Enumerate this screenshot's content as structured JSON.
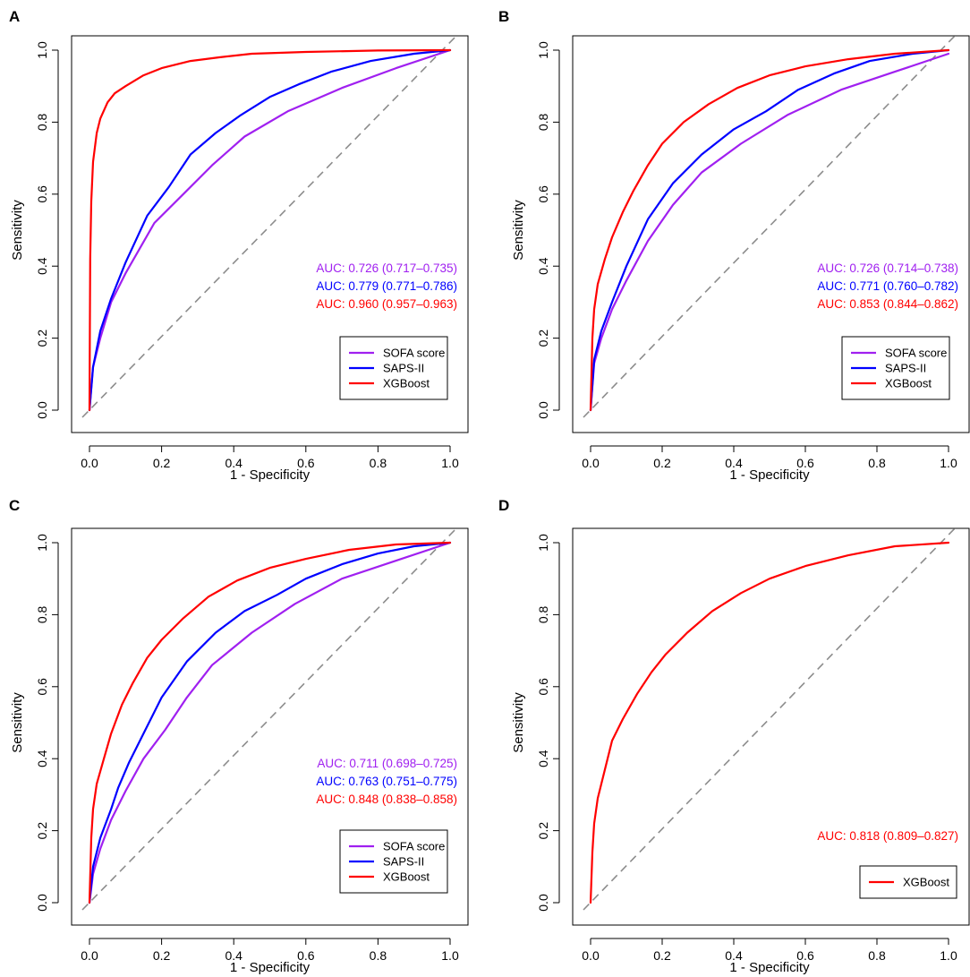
{
  "figure": {
    "panels": [
      "A",
      "B",
      "C",
      "D"
    ]
  },
  "chart_data": [
    {
      "panel": "A",
      "type": "line",
      "xlabel": "1 - Specificity",
      "ylabel": "Sensitivity",
      "xlim": [
        0,
        1
      ],
      "ylim": [
        0,
        1
      ],
      "xticks": [
        "0.0",
        "0.2",
        "0.4",
        "0.6",
        "0.8",
        "1.0"
      ],
      "yticks": [
        "0.0",
        "0.2",
        "0.4",
        "0.6",
        "0.8",
        "1.0"
      ],
      "legend_position": "bottom-right",
      "series": [
        {
          "name": "SOFA score",
          "color": "#a020f0",
          "auc_label": "AUC: 0.726 (0.717–0.735)",
          "x": [
            0,
            0.01,
            0.03,
            0.06,
            0.1,
            0.18,
            0.26,
            0.34,
            0.43,
            0.55,
            0.7,
            0.85,
            1.0
          ],
          "y": [
            0,
            0.12,
            0.2,
            0.3,
            0.38,
            0.52,
            0.6,
            0.68,
            0.76,
            0.83,
            0.895,
            0.95,
            1.0
          ]
        },
        {
          "name": "SAPS-II",
          "color": "#0000ff",
          "auc_label": "AUC: 0.779 (0.771–0.786)",
          "x": [
            0,
            0.01,
            0.03,
            0.06,
            0.1,
            0.16,
            0.22,
            0.28,
            0.35,
            0.42,
            0.5,
            0.58,
            0.67,
            0.78,
            0.9,
            1.0
          ],
          "y": [
            0,
            0.12,
            0.22,
            0.31,
            0.41,
            0.54,
            0.62,
            0.71,
            0.77,
            0.82,
            0.87,
            0.905,
            0.94,
            0.97,
            0.99,
            1.0
          ]
        },
        {
          "name": "XGBoost",
          "color": "#ff0000",
          "auc_label": "AUC: 0.960 (0.957–0.963)",
          "x": [
            0,
            0.002,
            0.005,
            0.01,
            0.02,
            0.03,
            0.05,
            0.07,
            0.1,
            0.15,
            0.2,
            0.28,
            0.36,
            0.45,
            0.6,
            0.8,
            1.0
          ],
          "y": [
            0,
            0.42,
            0.58,
            0.69,
            0.77,
            0.81,
            0.855,
            0.88,
            0.9,
            0.93,
            0.95,
            0.97,
            0.98,
            0.99,
            0.995,
            0.999,
            1.0
          ]
        }
      ]
    },
    {
      "panel": "B",
      "type": "line",
      "xlabel": "1 - Specificity",
      "ylabel": "Sensitivity",
      "xlim": [
        0,
        1
      ],
      "ylim": [
        0,
        1
      ],
      "xticks": [
        "0.0",
        "0.2",
        "0.4",
        "0.6",
        "0.8",
        "1.0"
      ],
      "yticks": [
        "0.0",
        "0.2",
        "0.4",
        "0.6",
        "0.8",
        "1.0"
      ],
      "legend_position": "bottom-right",
      "series": [
        {
          "name": "SOFA score",
          "color": "#a020f0",
          "auc_label": "AUC: 0.726 (0.714–0.738)",
          "x": [
            0,
            0.01,
            0.03,
            0.06,
            0.1,
            0.16,
            0.23,
            0.31,
            0.42,
            0.55,
            0.7,
            0.85,
            1.0
          ],
          "y": [
            0,
            0.13,
            0.2,
            0.28,
            0.36,
            0.47,
            0.57,
            0.66,
            0.74,
            0.82,
            0.89,
            0.94,
            0.99
          ]
        },
        {
          "name": "SAPS-II",
          "color": "#0000ff",
          "auc_label": "AUC: 0.771 (0.760–0.782)",
          "x": [
            0,
            0.01,
            0.03,
            0.06,
            0.1,
            0.16,
            0.23,
            0.31,
            0.4,
            0.49,
            0.58,
            0.68,
            0.78,
            0.9,
            1.0
          ],
          "y": [
            0,
            0.14,
            0.22,
            0.3,
            0.4,
            0.53,
            0.63,
            0.71,
            0.78,
            0.83,
            0.89,
            0.935,
            0.97,
            0.99,
            1.0
          ]
        },
        {
          "name": "XGBoost",
          "color": "#ff0000",
          "auc_label": "AUC: 0.853 (0.844–0.862)",
          "x": [
            0,
            0.005,
            0.01,
            0.02,
            0.04,
            0.06,
            0.09,
            0.12,
            0.16,
            0.2,
            0.26,
            0.33,
            0.41,
            0.5,
            0.6,
            0.72,
            0.85,
            1.0
          ],
          "y": [
            0,
            0.2,
            0.28,
            0.35,
            0.42,
            0.48,
            0.55,
            0.61,
            0.68,
            0.74,
            0.8,
            0.85,
            0.895,
            0.93,
            0.955,
            0.975,
            0.99,
            1.0
          ]
        }
      ]
    },
    {
      "panel": "C",
      "type": "line",
      "xlabel": "1 - Specificity",
      "ylabel": "Sensitivity",
      "xlim": [
        0,
        1
      ],
      "ylim": [
        0,
        1
      ],
      "xticks": [
        "0.0",
        "0.2",
        "0.4",
        "0.6",
        "0.8",
        "1.0"
      ],
      "yticks": [
        "0.0",
        "0.2",
        "0.4",
        "0.6",
        "0.8",
        "1.0"
      ],
      "legend_position": "bottom-right",
      "series": [
        {
          "name": "SOFA score",
          "color": "#a020f0",
          "auc_label": "AUC: 0.711 (0.698–0.725)",
          "x": [
            0,
            0.01,
            0.03,
            0.06,
            0.1,
            0.15,
            0.21,
            0.27,
            0.34,
            0.45,
            0.57,
            0.7,
            0.85,
            1.0
          ],
          "y": [
            0,
            0.08,
            0.15,
            0.23,
            0.31,
            0.4,
            0.48,
            0.57,
            0.66,
            0.75,
            0.83,
            0.9,
            0.95,
            1.0
          ]
        },
        {
          "name": "SAPS-II",
          "color": "#0000ff",
          "auc_label": "AUC: 0.763 (0.751–0.775)",
          "x": [
            0,
            0.01,
            0.03,
            0.06,
            0.08,
            0.11,
            0.15,
            0.2,
            0.27,
            0.35,
            0.43,
            0.52,
            0.6,
            0.7,
            0.8,
            0.9,
            1.0
          ],
          "y": [
            0,
            0.1,
            0.18,
            0.26,
            0.32,
            0.39,
            0.47,
            0.57,
            0.67,
            0.75,
            0.81,
            0.855,
            0.9,
            0.94,
            0.97,
            0.99,
            1.0
          ]
        },
        {
          "name": "XGBoost",
          "color": "#ff0000",
          "auc_label": "AUC: 0.848 (0.838–0.858)",
          "x": [
            0,
            0.005,
            0.01,
            0.02,
            0.04,
            0.06,
            0.09,
            0.12,
            0.16,
            0.2,
            0.26,
            0.33,
            0.41,
            0.5,
            0.6,
            0.72,
            0.85,
            1.0
          ],
          "y": [
            0,
            0.18,
            0.26,
            0.33,
            0.4,
            0.47,
            0.55,
            0.61,
            0.68,
            0.73,
            0.79,
            0.85,
            0.895,
            0.93,
            0.955,
            0.98,
            0.995,
            1.0
          ]
        }
      ]
    },
    {
      "panel": "D",
      "type": "line",
      "xlabel": "1 - Specificity",
      "ylabel": "Sensitivity",
      "xlim": [
        0,
        1
      ],
      "ylim": [
        0,
        1
      ],
      "xticks": [
        "0.0",
        "0.2",
        "0.4",
        "0.6",
        "0.8",
        "1.0"
      ],
      "yticks": [
        "0.0",
        "0.2",
        "0.4",
        "0.6",
        "0.8",
        "1.0"
      ],
      "legend_position": "bottom-right",
      "series": [
        {
          "name": "XGBoost",
          "color": "#ff0000",
          "auc_label": "AUC: 0.818 (0.809–0.827)",
          "x": [
            0,
            0.005,
            0.01,
            0.02,
            0.04,
            0.06,
            0.09,
            0.13,
            0.17,
            0.21,
            0.27,
            0.34,
            0.42,
            0.5,
            0.6,
            0.72,
            0.85,
            1.0
          ],
          "y": [
            0,
            0.14,
            0.22,
            0.29,
            0.37,
            0.45,
            0.51,
            0.58,
            0.64,
            0.69,
            0.75,
            0.81,
            0.86,
            0.9,
            0.935,
            0.965,
            0.99,
            1.0
          ]
        }
      ]
    }
  ]
}
